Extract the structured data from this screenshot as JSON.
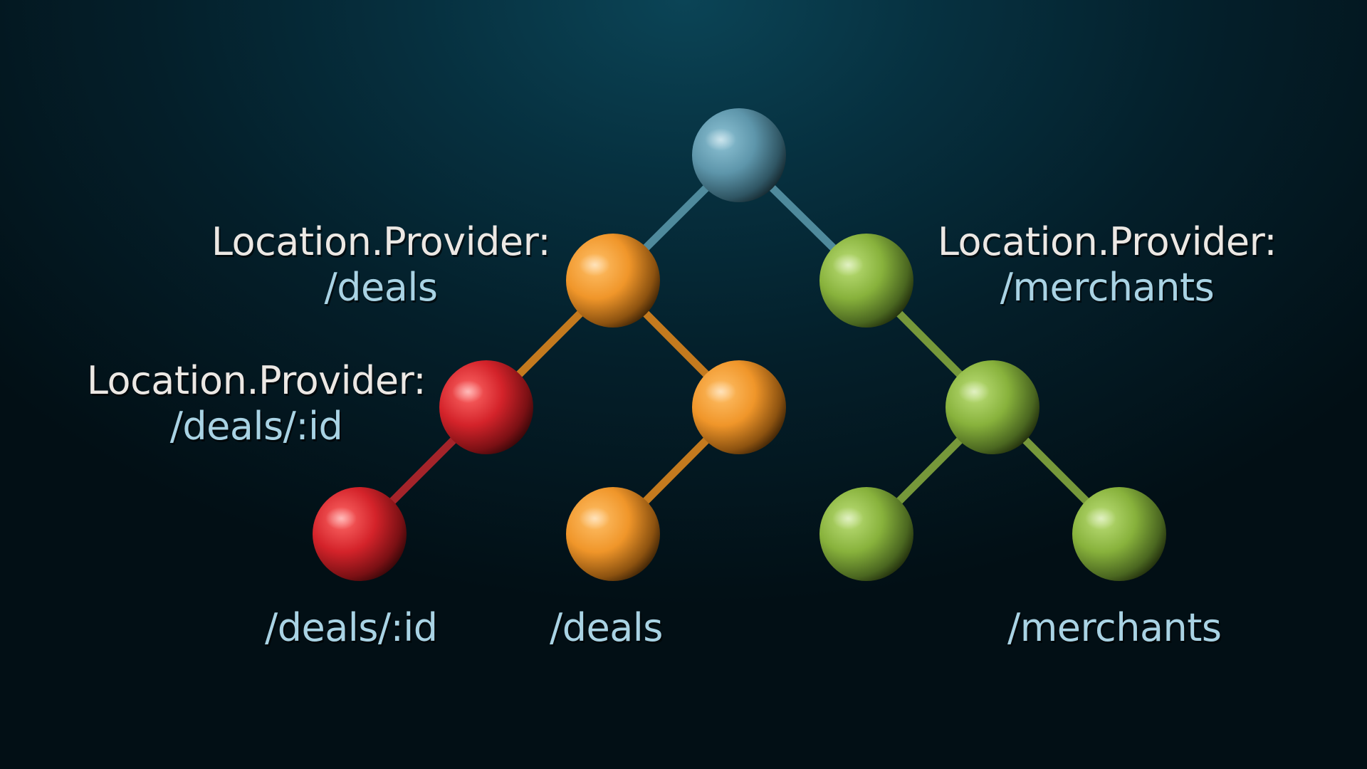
{
  "colors": {
    "root": "#6ba3b9",
    "orange": "#f29b2a",
    "red": "#d8262a",
    "green": "#8db53e",
    "title_text": "#ece8e4",
    "route_text": "#a9d3e4"
  },
  "providers": {
    "deals": {
      "title": "Location.Provider:",
      "route": "/deals"
    },
    "deals_id": {
      "title": "Location.Provider:",
      "route": "/deals/:id"
    },
    "merchants": {
      "title": "Location.Provider:",
      "route": "/merchants"
    }
  },
  "leaves": {
    "deals_id": "/deals/:id",
    "deals": "/deals",
    "merchants": "/merchants"
  },
  "tree": {
    "nodes": [
      {
        "id": "root",
        "color": "root"
      },
      {
        "id": "deals-provider",
        "color": "orange",
        "parent": "root"
      },
      {
        "id": "merchants-provider",
        "color": "green",
        "parent": "root"
      },
      {
        "id": "deals-id-provider",
        "color": "red",
        "parent": "deals-provider"
      },
      {
        "id": "deals-mid",
        "color": "orange",
        "parent": "deals-provider"
      },
      {
        "id": "merchants-mid",
        "color": "green",
        "parent": "merchants-provider"
      },
      {
        "id": "deals-id-leaf",
        "color": "red",
        "parent": "deals-id-provider"
      },
      {
        "id": "deals-leaf",
        "color": "orange",
        "parent": "deals-mid"
      },
      {
        "id": "merchants-leaf-left",
        "color": "green",
        "parent": "merchants-mid"
      },
      {
        "id": "merchants-leaf-right",
        "color": "green",
        "parent": "merchants-mid"
      }
    ]
  }
}
